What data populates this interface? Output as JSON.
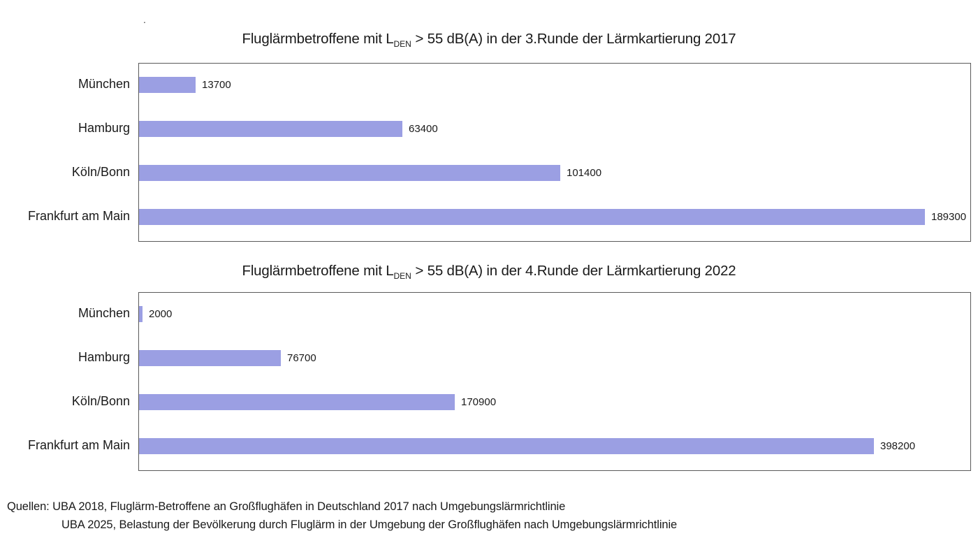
{
  "decor": {
    "stray_dot": "."
  },
  "colors": {
    "bar": "#9b9fe3",
    "plot_border": "#5a5a5a",
    "text": "#1a1a1a",
    "background": "#ffffff"
  },
  "chart_data": [
    {
      "type": "bar",
      "orientation": "horizontal",
      "title": "Fluglärmbetroffene mit LDEN > 55 dB(A) in der 3.Runde der Lärmkartierung 2017",
      "title_parts": {
        "prefix": "Fluglärmbetroffene mit L",
        "sub": "DEN",
        "suffix": " > 55 dB(A) in der 3.Runde der Lärmkartierung 2017"
      },
      "categories": [
        "München",
        "Hamburg",
        "Köln/Bonn",
        "Frankfurt am Main"
      ],
      "values": [
        13700,
        63400,
        101400,
        189300
      ],
      "value_labels": [
        "13700",
        "63400",
        "101400",
        "189300"
      ],
      "xlabel": "",
      "ylabel": "",
      "xlim": [
        0,
        200000
      ],
      "grid": false,
      "legend": false,
      "data_labels_position": "outside-end"
    },
    {
      "type": "bar",
      "orientation": "horizontal",
      "title": "Fluglärmbetroffene mit LDEN > 55 dB(A) in der 4.Runde der Lärmkartierung 2022",
      "title_parts": {
        "prefix": "Fluglärmbetroffene mit L",
        "sub": "DEN",
        "suffix": " > 55 dB(A) in der 4.Runde der Lärmkartierung 2022"
      },
      "categories": [
        "München",
        "Hamburg",
        "Köln/Bonn",
        "Frankfurt am Main"
      ],
      "values": [
        2000,
        76700,
        170900,
        398200
      ],
      "value_labels": [
        "2000",
        "76700",
        "170900",
        "398200"
      ],
      "xlabel": "",
      "ylabel": "",
      "xlim": [
        0,
        450000
      ],
      "grid": false,
      "legend": false,
      "data_labels_position": "outside-end"
    }
  ],
  "sources": {
    "line1": "Quellen: UBA 2018, Fluglärm-Betroffene an Großflughäfen in Deutschland 2017 nach Umgebungslärmrichtlinie",
    "line2": "UBA 2025, Belastung der Bevölkerung durch Fluglärm in der Umgebung der Großflughäfen nach Umgebungslärmrichtlinie"
  }
}
